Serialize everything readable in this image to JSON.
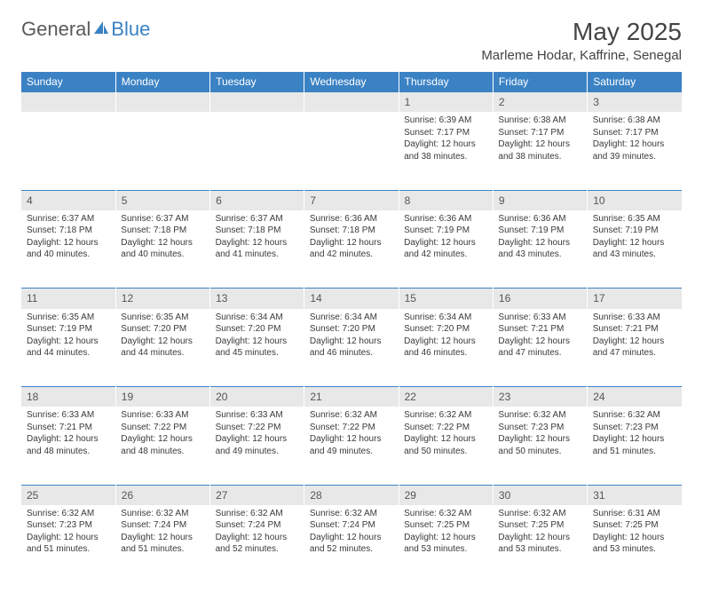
{
  "logo": {
    "part1": "General",
    "part2": "Blue"
  },
  "title": "May 2025",
  "location": "Marleme Hodar, Kaffrine, Senegal",
  "header_bg": "#3b82c4",
  "header_fg": "#ffffff",
  "daynum_bg": "#e8e8e8",
  "border_color": "#3b82c4",
  "text_color": "#3a3a3a",
  "font_family": "Arial",
  "dayHeaders": [
    "Sunday",
    "Monday",
    "Tuesday",
    "Wednesday",
    "Thursday",
    "Friday",
    "Saturday"
  ],
  "weeks": [
    {
      "nums": [
        "",
        "",
        "",
        "",
        "1",
        "2",
        "3"
      ],
      "cells": [
        null,
        null,
        null,
        null,
        {
          "sunrise": "Sunrise: 6:39 AM",
          "sunset": "Sunset: 7:17 PM",
          "day1": "Daylight: 12 hours",
          "day2": "and 38 minutes."
        },
        {
          "sunrise": "Sunrise: 6:38 AM",
          "sunset": "Sunset: 7:17 PM",
          "day1": "Daylight: 12 hours",
          "day2": "and 38 minutes."
        },
        {
          "sunrise": "Sunrise: 6:38 AM",
          "sunset": "Sunset: 7:17 PM",
          "day1": "Daylight: 12 hours",
          "day2": "and 39 minutes."
        }
      ]
    },
    {
      "nums": [
        "4",
        "5",
        "6",
        "7",
        "8",
        "9",
        "10"
      ],
      "cells": [
        {
          "sunrise": "Sunrise: 6:37 AM",
          "sunset": "Sunset: 7:18 PM",
          "day1": "Daylight: 12 hours",
          "day2": "and 40 minutes."
        },
        {
          "sunrise": "Sunrise: 6:37 AM",
          "sunset": "Sunset: 7:18 PM",
          "day1": "Daylight: 12 hours",
          "day2": "and 40 minutes."
        },
        {
          "sunrise": "Sunrise: 6:37 AM",
          "sunset": "Sunset: 7:18 PM",
          "day1": "Daylight: 12 hours",
          "day2": "and 41 minutes."
        },
        {
          "sunrise": "Sunrise: 6:36 AM",
          "sunset": "Sunset: 7:18 PM",
          "day1": "Daylight: 12 hours",
          "day2": "and 42 minutes."
        },
        {
          "sunrise": "Sunrise: 6:36 AM",
          "sunset": "Sunset: 7:19 PM",
          "day1": "Daylight: 12 hours",
          "day2": "and 42 minutes."
        },
        {
          "sunrise": "Sunrise: 6:36 AM",
          "sunset": "Sunset: 7:19 PM",
          "day1": "Daylight: 12 hours",
          "day2": "and 43 minutes."
        },
        {
          "sunrise": "Sunrise: 6:35 AM",
          "sunset": "Sunset: 7:19 PM",
          "day1": "Daylight: 12 hours",
          "day2": "and 43 minutes."
        }
      ]
    },
    {
      "nums": [
        "11",
        "12",
        "13",
        "14",
        "15",
        "16",
        "17"
      ],
      "cells": [
        {
          "sunrise": "Sunrise: 6:35 AM",
          "sunset": "Sunset: 7:19 PM",
          "day1": "Daylight: 12 hours",
          "day2": "and 44 minutes."
        },
        {
          "sunrise": "Sunrise: 6:35 AM",
          "sunset": "Sunset: 7:20 PM",
          "day1": "Daylight: 12 hours",
          "day2": "and 44 minutes."
        },
        {
          "sunrise": "Sunrise: 6:34 AM",
          "sunset": "Sunset: 7:20 PM",
          "day1": "Daylight: 12 hours",
          "day2": "and 45 minutes."
        },
        {
          "sunrise": "Sunrise: 6:34 AM",
          "sunset": "Sunset: 7:20 PM",
          "day1": "Daylight: 12 hours",
          "day2": "and 46 minutes."
        },
        {
          "sunrise": "Sunrise: 6:34 AM",
          "sunset": "Sunset: 7:20 PM",
          "day1": "Daylight: 12 hours",
          "day2": "and 46 minutes."
        },
        {
          "sunrise": "Sunrise: 6:33 AM",
          "sunset": "Sunset: 7:21 PM",
          "day1": "Daylight: 12 hours",
          "day2": "and 47 minutes."
        },
        {
          "sunrise": "Sunrise: 6:33 AM",
          "sunset": "Sunset: 7:21 PM",
          "day1": "Daylight: 12 hours",
          "day2": "and 47 minutes."
        }
      ]
    },
    {
      "nums": [
        "18",
        "19",
        "20",
        "21",
        "22",
        "23",
        "24"
      ],
      "cells": [
        {
          "sunrise": "Sunrise: 6:33 AM",
          "sunset": "Sunset: 7:21 PM",
          "day1": "Daylight: 12 hours",
          "day2": "and 48 minutes."
        },
        {
          "sunrise": "Sunrise: 6:33 AM",
          "sunset": "Sunset: 7:22 PM",
          "day1": "Daylight: 12 hours",
          "day2": "and 48 minutes."
        },
        {
          "sunrise": "Sunrise: 6:33 AM",
          "sunset": "Sunset: 7:22 PM",
          "day1": "Daylight: 12 hours",
          "day2": "and 49 minutes."
        },
        {
          "sunrise": "Sunrise: 6:32 AM",
          "sunset": "Sunset: 7:22 PM",
          "day1": "Daylight: 12 hours",
          "day2": "and 49 minutes."
        },
        {
          "sunrise": "Sunrise: 6:32 AM",
          "sunset": "Sunset: 7:22 PM",
          "day1": "Daylight: 12 hours",
          "day2": "and 50 minutes."
        },
        {
          "sunrise": "Sunrise: 6:32 AM",
          "sunset": "Sunset: 7:23 PM",
          "day1": "Daylight: 12 hours",
          "day2": "and 50 minutes."
        },
        {
          "sunrise": "Sunrise: 6:32 AM",
          "sunset": "Sunset: 7:23 PM",
          "day1": "Daylight: 12 hours",
          "day2": "and 51 minutes."
        }
      ]
    },
    {
      "nums": [
        "25",
        "26",
        "27",
        "28",
        "29",
        "30",
        "31"
      ],
      "cells": [
        {
          "sunrise": "Sunrise: 6:32 AM",
          "sunset": "Sunset: 7:23 PM",
          "day1": "Daylight: 12 hours",
          "day2": "and 51 minutes."
        },
        {
          "sunrise": "Sunrise: 6:32 AM",
          "sunset": "Sunset: 7:24 PM",
          "day1": "Daylight: 12 hours",
          "day2": "and 51 minutes."
        },
        {
          "sunrise": "Sunrise: 6:32 AM",
          "sunset": "Sunset: 7:24 PM",
          "day1": "Daylight: 12 hours",
          "day2": "and 52 minutes."
        },
        {
          "sunrise": "Sunrise: 6:32 AM",
          "sunset": "Sunset: 7:24 PM",
          "day1": "Daylight: 12 hours",
          "day2": "and 52 minutes."
        },
        {
          "sunrise": "Sunrise: 6:32 AM",
          "sunset": "Sunset: 7:25 PM",
          "day1": "Daylight: 12 hours",
          "day2": "and 53 minutes."
        },
        {
          "sunrise": "Sunrise: 6:32 AM",
          "sunset": "Sunset: 7:25 PM",
          "day1": "Daylight: 12 hours",
          "day2": "and 53 minutes."
        },
        {
          "sunrise": "Sunrise: 6:31 AM",
          "sunset": "Sunset: 7:25 PM",
          "day1": "Daylight: 12 hours",
          "day2": "and 53 minutes."
        }
      ]
    }
  ]
}
